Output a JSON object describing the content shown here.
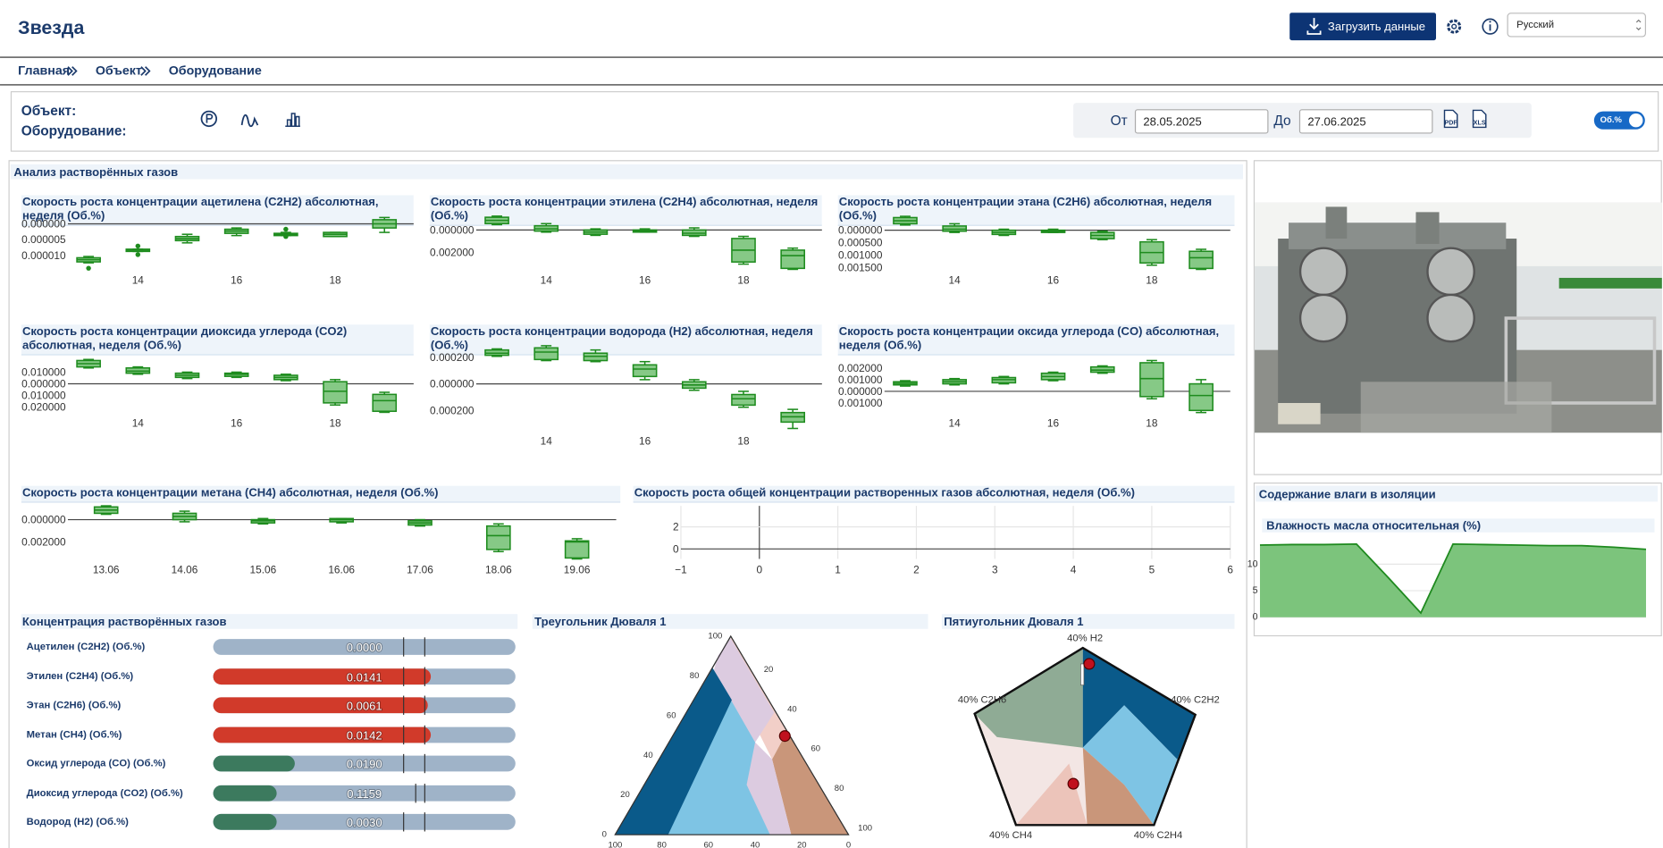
{
  "header": {
    "title": "Звезда",
    "upload": "Загрузить данные",
    "language": "Русский"
  },
  "breadcrumbs": [
    "Главная",
    "Объект",
    "Оборудование"
  ],
  "filters": {
    "object": "Объект:",
    "equipment": "Оборудование:",
    "from_label": "От",
    "from": "28.05.2025",
    "to_label": "До",
    "to": "27.06.2025",
    "pdf": "PDF",
    "xls": "XLS",
    "toggle": "Об.%"
  },
  "gas_panel": {
    "title": "Анализ растворённых газов"
  },
  "box_charts": [
    {
      "type": "box",
      "title": "Скорость роста концентрации ацетилена (C2H2) абсолютная, неделя (Об.%)",
      "color": "#1e8c1e",
      "fill": "#86c986",
      "x": [
        13,
        14,
        15,
        16,
        17,
        18,
        19
      ],
      "xlim": [
        11.6,
        19.6
      ],
      "xticks": [
        14,
        16,
        18
      ],
      "ylim": [
        -1.57e-05,
        3.7e-06
      ],
      "yticks": [
        {
          "value": 0,
          "label": "0.000000"
        },
        {
          "value": -5e-06,
          "label": "0.000005"
        },
        {
          "value": -1e-05,
          "label": "0.000010"
        }
      ],
      "boxes": [
        {
          "low": -1.23e-05,
          "q1": -1.2e-05,
          "median": -1.13e-05,
          "q3": -1.07e-05,
          "high": -1.03e-05,
          "outliers": [
            -1.4e-05
          ]
        },
        {
          "low": -8.7e-06,
          "q1": -8.7e-06,
          "median": -8.3e-06,
          "q3": -8e-06,
          "high": -8e-06,
          "outliers": [
            -7e-06,
            -9.7e-06
          ]
        },
        {
          "low": -6e-06,
          "q1": -5.3e-06,
          "median": -4.7e-06,
          "q3": -4e-06,
          "high": -3.3e-06
        },
        {
          "low": -3.7e-06,
          "q1": -3e-06,
          "median": -2.3e-06,
          "q3": -1.7e-06,
          "high": -1.3e-06
        },
        {
          "low": -3.7e-06,
          "q1": -3.7e-06,
          "median": -3.3e-06,
          "q3": -3e-06,
          "high": -2.7e-06,
          "outliers": [
            -1.7e-06,
            -4e-06
          ]
        },
        {
          "low": -4e-06,
          "q1": -4e-06,
          "median": -3.3e-06,
          "q3": -2.7e-06,
          "high": -2.7e-06
        },
        {
          "low": -2.7e-06,
          "q1": -1.3e-06,
          "median": 0,
          "q3": 1.3e-06,
          "high": 2e-06
        }
      ]
    },
    {
      "type": "box",
      "title": "Скорость роста концентрации этилена (C2H4) абсолютная, неделя (Об.%)",
      "color": "#1e8c1e",
      "fill": "#86c986",
      "x": [
        13,
        14,
        15,
        16,
        17,
        18,
        19
      ],
      "xlim": [
        11.6,
        19.6
      ],
      "xticks": [
        14,
        16,
        18
      ],
      "ylim": [
        -0.0039,
        0.0016
      ],
      "yticks": [
        {
          "value": 0,
          "label": "0.000000"
        },
        {
          "value": -0.002,
          "label": "0.002000"
        }
      ],
      "boxes": [
        {
          "low": 0.00048,
          "q1": 0.00057,
          "median": 0.00086,
          "q3": 0.00114,
          "high": 0.00124
        },
        {
          "low": -0.00019,
          "q1": -0.0001,
          "median": 0.0001,
          "q3": 0.00038,
          "high": 0.00057
        },
        {
          "low": -0.00048,
          "q1": -0.00038,
          "median": -0.00019,
          "q3": 0,
          "high": 0.0001
        },
        {
          "low": -0.00019,
          "q1": -0.00019,
          "median": -0.0001,
          "q3": 0,
          "high": 0.0001
        },
        {
          "low": -0.00057,
          "q1": -0.00048,
          "median": -0.00029,
          "q3": 0,
          "high": 0.00019
        },
        {
          "low": -0.00305,
          "q1": -0.00286,
          "median": -0.0018,
          "q3": -0.00076,
          "high": -0.00057
        },
        {
          "low": -0.00352,
          "q1": -0.00343,
          "median": -0.00229,
          "q3": -0.0018,
          "high": -0.00162
        }
      ]
    },
    {
      "type": "box",
      "title": "Скорость роста концентрации этана (C2H6) абсолютная, неделя (Об.%)",
      "color": "#1e8c1e",
      "fill": "#86c986",
      "x": [
        13,
        14,
        15,
        16,
        17,
        18,
        19
      ],
      "xlim": [
        11.6,
        19.6
      ],
      "xticks": [
        14,
        16,
        18
      ],
      "ylim": [
        -0.00175,
        0.00073
      ],
      "yticks": [
        {
          "value": 0,
          "label": "0.000000"
        },
        {
          "value": -0.0005,
          "label": "0.000500"
        },
        {
          "value": -0.001,
          "label": "0.001000"
        },
        {
          "value": -0.0015,
          "label": "0.001500"
        }
      ],
      "boxes": [
        {
          "low": 0.00021,
          "q1": 0.00026,
          "median": 0.00038,
          "q3": 0.00051,
          "high": 0.00056
        },
        {
          "low": -9e-05,
          "q1": -4e-05,
          "median": 4e-05,
          "q3": 0.00017,
          "high": 0.00026
        },
        {
          "low": -0.00021,
          "q1": -0.00017,
          "median": -9e-05,
          "q3": 0,
          "high": 4e-05
        },
        {
          "low": -9e-05,
          "q1": -9e-05,
          "median": -4e-05,
          "q3": 0,
          "high": 4e-05
        },
        {
          "low": -0.00038,
          "q1": -0.00034,
          "median": -0.00021,
          "q3": -9e-05,
          "high": -4e-05
        },
        {
          "low": -0.00141,
          "q1": -0.00132,
          "median": -0.0009,
          "q3": -0.00047,
          "high": -0.00038
        },
        {
          "low": -0.00158,
          "q1": -0.00154,
          "median": -0.00111,
          "q3": -0.00085,
          "high": -0.00077
        }
      ]
    },
    {
      "type": "box",
      "title": "Скорость роста концентрации диоксида углерода (CO2) абсолютная, неделя (Об.%)",
      "color": "#1e8c1e",
      "fill": "#86c986",
      "x": [
        13,
        14,
        15,
        16,
        17,
        18,
        19
      ],
      "xlim": [
        11.6,
        19.6
      ],
      "xticks": [
        14,
        16,
        18
      ],
      "ylim": [
        -0.042,
        0.0336
      ],
      "yticks": [
        {
          "value": 0.01,
          "label": "0.010000"
        },
        {
          "value": 0,
          "label": "0.000000"
        },
        {
          "value": -0.01,
          "label": "0.010000"
        },
        {
          "value": -0.02,
          "label": "0.020000"
        }
      ],
      "boxes": [
        {
          "low": 0.0136,
          "q1": 0.0145,
          "median": 0.0173,
          "q3": 0.02,
          "high": 0.0209
        },
        {
          "low": 0.0082,
          "q1": 0.0091,
          "median": 0.0109,
          "q3": 0.0136,
          "high": 0.0145
        },
        {
          "low": 0.0045,
          "q1": 0.0055,
          "median": 0.0073,
          "q3": 0.0091,
          "high": 0.01
        },
        {
          "low": 0.0055,
          "q1": 0.0064,
          "median": 0.0082,
          "q3": 0.0091,
          "high": 0.01
        },
        {
          "low": 0.0027,
          "q1": 0.0036,
          "median": 0.0055,
          "q3": 0.0073,
          "high": 0.0082
        },
        {
          "low": -0.0182,
          "q1": -0.0164,
          "median": -0.0064,
          "q3": 0.0018,
          "high": 0.0036
        },
        {
          "low": -0.0245,
          "q1": -0.0236,
          "median": -0.0145,
          "q3": -0.0091,
          "high": -0.0073
        }
      ]
    },
    {
      "type": "box",
      "title": "Скорость роста концентрации водорода (H2) абсолютная, неделя (Об.%)",
      "color": "#1e8c1e",
      "fill": "#86c986",
      "x": [
        13,
        14,
        15,
        16,
        17,
        18,
        19
      ],
      "xlim": [
        11.6,
        19.6
      ],
      "xticks": [
        14,
        16,
        18
      ],
      "ylim": [
        -0.000368,
        0.000296
      ],
      "yticks": [
        {
          "value": 0.0002,
          "label": "0.000200"
        },
        {
          "value": 0,
          "label": "0.000000"
        },
        {
          "value": -0.0002,
          "label": "0.000200"
        }
      ],
      "boxes": [
        {
          "low": 0.000208,
          "q1": 0.000216,
          "median": 0.000232,
          "q3": 0.000256,
          "high": 0.000264
        },
        {
          "low": 0.000176,
          "q1": 0.000184,
          "median": 0.00024,
          "q3": 0.000272,
          "high": 0.000288
        },
        {
          "low": 0.000168,
          "q1": 0.000176,
          "median": 0.000208,
          "q3": 0.000232,
          "high": 0.000256
        },
        {
          "low": 3.2e-05,
          "q1": 5.6e-05,
          "median": 0.000112,
          "q3": 0.000144,
          "high": 0.000168
        },
        {
          "low": -4.8e-05,
          "q1": -3.2e-05,
          "median": -8e-06,
          "q3": 1.6e-05,
          "high": 3.2e-05
        },
        {
          "low": -0.000176,
          "q1": -0.00016,
          "median": -0.000112,
          "q3": -8e-05,
          "high": -5.6e-05
        },
        {
          "low": -0.000336,
          "q1": -0.000288,
          "median": -0.000248,
          "q3": -0.000216,
          "high": -0.000192
        }
      ]
    },
    {
      "type": "box",
      "title": "Скорость роста концентрации оксида углерода (CO) абсолютная, неделя (Об.%)",
      "color": "#1e8c1e",
      "fill": "#86c986",
      "x": [
        13,
        14,
        15,
        16,
        17,
        18,
        19
      ],
      "xlim": [
        11.6,
        19.6
      ],
      "xticks": [
        14,
        16,
        18
      ],
      "ylim": [
        -0.00355,
        0.004
      ],
      "yticks": [
        {
          "value": 0.002,
          "label": "0.002000"
        },
        {
          "value": 0.001,
          "label": "0.001000"
        },
        {
          "value": 0,
          "label": "0.000000"
        },
        {
          "value": -0.001,
          "label": "0.001000"
        }
      ],
      "boxes": [
        {
          "low": 0.00045,
          "q1": 0.00055,
          "median": 0.00068,
          "q3": 0.00082,
          "high": 0.00091
        },
        {
          "low": 0.00055,
          "q1": 0.00064,
          "median": 0.00082,
          "q3": 0.001,
          "high": 0.00109
        },
        {
          "low": 0.00064,
          "q1": 0.00073,
          "median": 0.001,
          "q3": 0.00118,
          "high": 0.00127
        },
        {
          "low": 0.00091,
          "q1": 0.001,
          "median": 0.00127,
          "q3": 0.00155,
          "high": 0.00164
        },
        {
          "low": 0.00155,
          "q1": 0.00164,
          "median": 0.00182,
          "q3": 0.00209,
          "high": 0.00218
        },
        {
          "low": -0.00064,
          "q1": -0.00045,
          "median": 0.00109,
          "q3": 0.00245,
          "high": 0.00264
        },
        {
          "low": -0.00182,
          "q1": -0.00164,
          "median": -0.00036,
          "q3": 0.00064,
          "high": 0.001
        }
      ]
    },
    {
      "type": "box",
      "title": "Скорость роста концентрации метана (CH4) абсолютная, неделя (Об.%)",
      "color": "#1e8c1e",
      "fill": "#86c986",
      "categories": [
        "13.06",
        "14.06",
        "15.06",
        "16.06",
        "17.06",
        "18.06",
        "19.06"
      ],
      "ylim": [
        -0.0038,
        0.00152
      ],
      "yticks": [
        {
          "value": 0,
          "label": "0.000000"
        },
        {
          "value": -0.002,
          "label": "0.002000"
        }
      ],
      "boxes": [
        {
          "low": 0.00048,
          "q1": 0.00057,
          "median": 0.00086,
          "q3": 0.00114,
          "high": 0.00124
        },
        {
          "low": -0.00019,
          "q1": 0,
          "median": 0.00029,
          "q3": 0.00057,
          "high": 0.00076
        },
        {
          "low": -0.00038,
          "q1": -0.00029,
          "median": -0.0001,
          "q3": 0,
          "high": 0.0001
        },
        {
          "low": -0.00029,
          "q1": -0.00019,
          "median": 0,
          "q3": 0.0001,
          "high": 0.0001
        },
        {
          "low": -0.00057,
          "q1": -0.00048,
          "median": -0.00029,
          "q3": -0.0001,
          "high": 0
        },
        {
          "low": -0.00286,
          "q1": -0.00267,
          "median": -0.00143,
          "q3": -0.00057,
          "high": -0.00038
        },
        {
          "low": -0.00352,
          "q1": -0.00343,
          "median": -0.002,
          "q3": -0.0019,
          "high": -0.00171
        }
      ]
    }
  ],
  "total_chart": {
    "type": "scatter",
    "title": "Скорость роста общей концентрации растворенных газов абсолютная, неделя (Об.%)",
    "xlim": [
      -1,
      6
    ],
    "xticks": [
      {
        "value": -1,
        "label": "−1"
      },
      0,
      1,
      2,
      3,
      4,
      5,
      6
    ],
    "ylim": [
      -0.9,
      3.9
    ],
    "yticks": [
      0,
      2
    ],
    "grid": true
  },
  "moisture_panel": {
    "title": "Содержание влаги в изоляции"
  },
  "moisture_chart": {
    "type": "area",
    "title": "Влажность масла относительная (%)",
    "color": "#1f8a1f",
    "fill": "#7cc47c",
    "values": [
      13.6,
      13.7,
      13.7,
      13.8,
      7.4,
      0.8,
      13.8,
      13.7,
      13.6,
      13.5,
      13.5,
      13.2,
      12.8
    ],
    "ylim": [
      0,
      15.4
    ],
    "yticks": [
      0,
      5,
      10
    ],
    "grid": true
  },
  "concentration": {
    "title": "Концентрация растворённых газов",
    "rows": [
      {
        "name": "Ацетилен (C2H2) (Об.%)",
        "value": "0.0000",
        "fill_pct": 0,
        "limits": [
          63,
          70
        ],
        "color": "#3c7a5e"
      },
      {
        "name": "Этилен (C2H4) (Об.%)",
        "value": "0.0141",
        "fill_pct": 72,
        "limits": [
          63,
          70
        ],
        "color": "#d13a2a"
      },
      {
        "name": "Этан (C2H6) (Об.%)",
        "value": "0.0061",
        "fill_pct": 71,
        "limits": [
          63,
          70
        ],
        "color": "#d13a2a"
      },
      {
        "name": "Метан (CH4) (Об.%)",
        "value": "0.0142",
        "fill_pct": 72,
        "limits": [
          63,
          70
        ],
        "color": "#d13a2a"
      },
      {
        "name": "Оксид углерода (CO) (Об.%)",
        "value": "0.0190",
        "fill_pct": 27,
        "limits": [
          63,
          70
        ],
        "color": "#3c7a5e"
      },
      {
        "name": "Диоксид углерода (CO2) (Об.%)",
        "value": "0.1159",
        "fill_pct": 21,
        "limits": [
          67,
          70
        ],
        "color": "#3c7a5e"
      },
      {
        "name": "Водород (H2) (Об.%)",
        "value": "0.0030",
        "fill_pct": 21,
        "limits": [
          63,
          70
        ],
        "color": "#3c7a5e"
      }
    ]
  },
  "triangle": {
    "title": "Треугольник Дюваля 1",
    "left_ticks": [
      0,
      20,
      40,
      60,
      80,
      100
    ],
    "right_ticks": [
      20,
      40,
      60,
      80,
      100
    ],
    "bottom_ticks": [
      100,
      80,
      60,
      40,
      20,
      0
    ]
  },
  "pentagon": {
    "title": "Пятиугольник Дюваля 1",
    "labels": [
      "40% H2",
      "40% C2H2",
      "40% C2H4",
      "40% CH4",
      "40% C2H6"
    ]
  }
}
